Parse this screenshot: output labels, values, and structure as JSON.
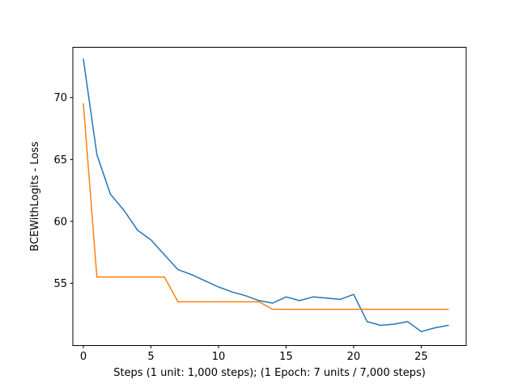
{
  "figure": {
    "background_color": "#ffffff",
    "spine_color": "#000000"
  },
  "chart_data": {
    "type": "line",
    "title": "",
    "xlabel": "Steps (1 unit: 1,000 steps); (1 Epoch: 7 units / 7,000 steps)",
    "ylabel": "BCEWithLogits - Loss",
    "grid": false,
    "legend": "none",
    "xlim": [
      -0.78,
      28.33
    ],
    "ylim": [
      49.97,
      74.06
    ],
    "xticks": [
      0,
      5,
      10,
      15,
      20,
      25
    ],
    "yticks": [
      55,
      60,
      65,
      70
    ],
    "x": [
      0,
      1,
      2,
      3,
      4,
      5,
      6,
      7,
      8,
      9,
      10,
      11,
      12,
      13,
      14,
      15,
      16,
      17,
      18,
      19,
      20,
      21,
      22,
      23,
      24,
      25,
      26,
      27
    ],
    "series": [
      {
        "name": "blue",
        "color": "#1f77b4",
        "values": [
          73.1,
          65.4,
          62.2,
          60.9,
          59.3,
          58.5,
          57.3,
          56.1,
          55.7,
          55.2,
          54.7,
          54.3,
          54.0,
          53.6,
          53.4,
          53.9,
          53.6,
          53.9,
          53.8,
          53.7,
          54.1,
          51.9,
          51.6,
          51.7,
          51.9,
          51.1,
          51.4,
          51.6
        ]
      },
      {
        "name": "orange",
        "color": "#ff7f0e",
        "values": [
          69.5,
          55.5,
          55.5,
          55.5,
          55.5,
          55.5,
          55.5,
          53.5,
          53.5,
          53.5,
          53.5,
          53.5,
          53.5,
          53.5,
          52.9,
          52.9,
          52.9,
          52.9,
          52.9,
          52.9,
          52.9,
          52.9,
          52.9,
          52.9,
          52.9,
          52.9,
          52.9,
          52.9
        ]
      }
    ]
  }
}
